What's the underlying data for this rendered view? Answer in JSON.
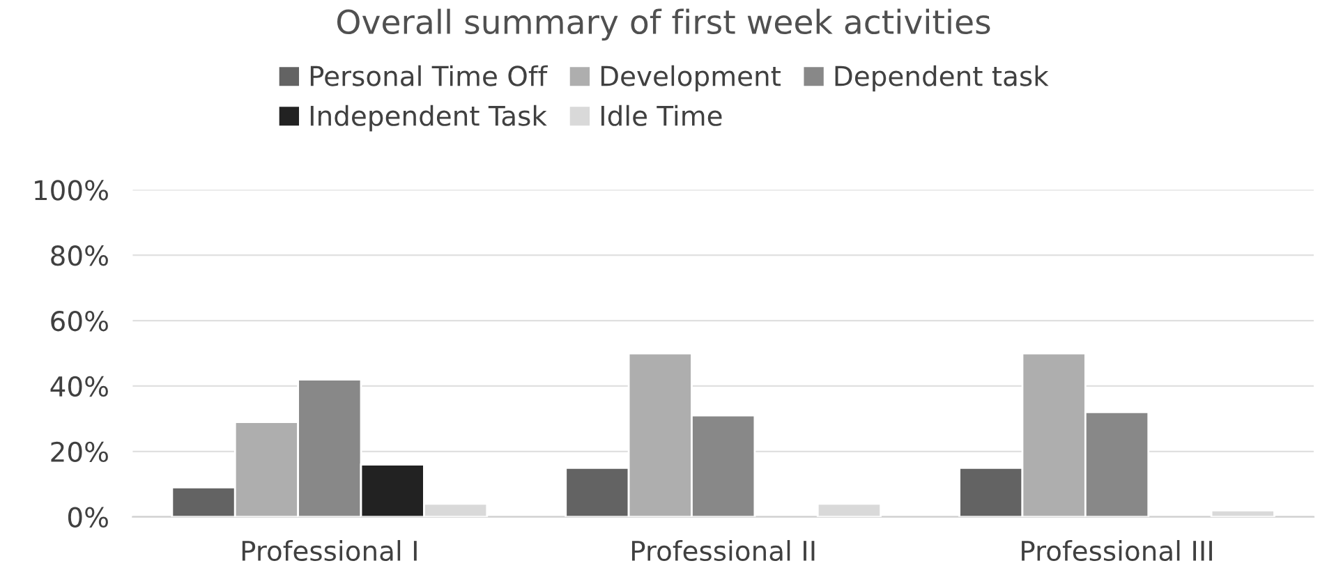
{
  "chart_data": {
    "type": "bar",
    "title": "Overall summary of first week activities",
    "categories": [
      "Professional I",
      "Professional II",
      "Professional III"
    ],
    "series": [
      {
        "name": "Personal Time Off",
        "color": "#636363",
        "values": [
          9,
          15,
          15
        ]
      },
      {
        "name": "Development",
        "color": "#aeaeae",
        "values": [
          29,
          50,
          50
        ]
      },
      {
        "name": "Dependent task",
        "color": "#888888",
        "values": [
          42,
          31,
          32
        ]
      },
      {
        "name": "Independent Task",
        "color": "#222222",
        "values": [
          16,
          null,
          null
        ]
      },
      {
        "name": "Idle Time",
        "color": "#d9d9d9",
        "values": [
          4,
          4,
          2
        ]
      }
    ],
    "ylim": [
      0,
      100
    ],
    "yticks": [
      {
        "value": 0,
        "label": "0%"
      },
      {
        "value": 20,
        "label": "20%"
      },
      {
        "value": 40,
        "label": "40%"
      },
      {
        "value": 60,
        "label": "60%"
      },
      {
        "value": 80,
        "label": "80%"
      },
      {
        "value": 100,
        "label": "100%"
      }
    ],
    "grid": "y",
    "legend": "top"
  }
}
